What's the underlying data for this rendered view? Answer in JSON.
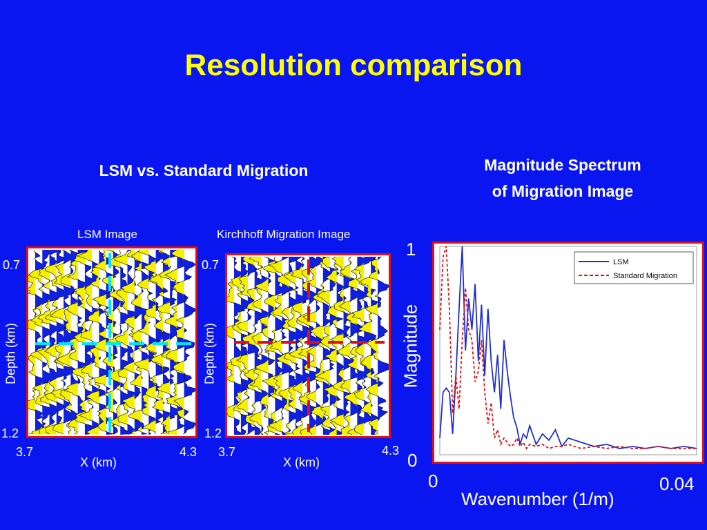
{
  "slide": {
    "title": "Resolution comparison",
    "left_heading": "LSM vs. Standard Migration",
    "right_heading_line1": "Magnitude Spectrum",
    "right_heading_line2": "of Migration Image"
  },
  "panels": [
    {
      "title": "LSM Image",
      "ylabel": "Depth (km)",
      "xlabel": "X (km)",
      "ytick_top": "0.7",
      "ytick_bottom": "1.2",
      "xtick_left": "3.7",
      "xtick_right": "4.3",
      "cross_color": "#00e5ff"
    },
    {
      "title": "Kirchhoff Migration Image",
      "ylabel": "Depth (km)",
      "xlabel": "X (km)",
      "ytick_top": "0.7",
      "ytick_bottom": "1.2",
      "xtick_left": "3.7",
      "xtick_right": "4.3",
      "cross_color": "#e01010"
    }
  ],
  "chart_data": {
    "type": "line",
    "xlabel": "Wavenumber (1/m)",
    "ylabel": "Magnitude",
    "xlim": [
      0,
      0.04
    ],
    "ylim": [
      0,
      1
    ],
    "xtick_labels": [
      "0",
      "0.04"
    ],
    "ytick_labels": [
      "0",
      "1"
    ],
    "legend_position": "top-right",
    "grid": false,
    "series": [
      {
        "name": "LSM",
        "color": "#1f2fd0",
        "style": "solid",
        "x": [
          0,
          0.0005,
          0.001,
          0.0015,
          0.002,
          0.0025,
          0.003,
          0.0035,
          0.004,
          0.0045,
          0.005,
          0.0055,
          0.006,
          0.0065,
          0.007,
          0.0075,
          0.008,
          0.0085,
          0.009,
          0.0095,
          0.01,
          0.0105,
          0.011,
          0.0115,
          0.012,
          0.0125,
          0.013,
          0.0135,
          0.014,
          0.015,
          0.016,
          0.017,
          0.018,
          0.019,
          0.02,
          0.022,
          0.024,
          0.026,
          0.028,
          0.03,
          0.032,
          0.034,
          0.036,
          0.038,
          0.04
        ],
        "y": [
          0.08,
          0.3,
          0.32,
          0.3,
          0.1,
          0.38,
          0.7,
          1.0,
          0.5,
          0.75,
          0.6,
          0.82,
          0.45,
          0.72,
          0.38,
          0.7,
          0.45,
          0.3,
          0.48,
          0.22,
          0.55,
          0.4,
          0.28,
          0.18,
          0.13,
          0.05,
          0.1,
          0.08,
          0.14,
          0.05,
          0.1,
          0.07,
          0.12,
          0.04,
          0.08,
          0.06,
          0.04,
          0.05,
          0.03,
          0.04,
          0.03,
          0.04,
          0.03,
          0.04,
          0.03
        ]
      },
      {
        "name": "Standard Migration",
        "color": "#e01010",
        "style": "dashed",
        "x": [
          0,
          0.0005,
          0.001,
          0.0015,
          0.002,
          0.0025,
          0.003,
          0.0035,
          0.004,
          0.0045,
          0.005,
          0.0055,
          0.006,
          0.0065,
          0.007,
          0.0075,
          0.008,
          0.0085,
          0.009,
          0.0095,
          0.01,
          0.0105,
          0.011,
          0.0115,
          0.012,
          0.0125,
          0.013,
          0.0135,
          0.014,
          0.015,
          0.016,
          0.017,
          0.018,
          0.019,
          0.02,
          0.022,
          0.024,
          0.026,
          0.028,
          0.03,
          0.032,
          0.034,
          0.036,
          0.038,
          0.04
        ],
        "y": [
          0.6,
          0.95,
          1.0,
          0.7,
          0.2,
          0.38,
          0.22,
          0.55,
          0.8,
          0.6,
          0.55,
          0.35,
          0.4,
          0.55,
          0.3,
          0.15,
          0.25,
          0.08,
          0.12,
          0.05,
          0.08,
          0.06,
          0.04,
          0.05,
          0.08,
          0.04,
          0.06,
          0.03,
          0.05,
          0.04,
          0.05,
          0.03,
          0.04,
          0.04,
          0.05,
          0.03,
          0.04,
          0.03,
          0.04,
          0.03,
          0.03,
          0.04,
          0.03,
          0.03,
          0.03
        ]
      }
    ]
  }
}
